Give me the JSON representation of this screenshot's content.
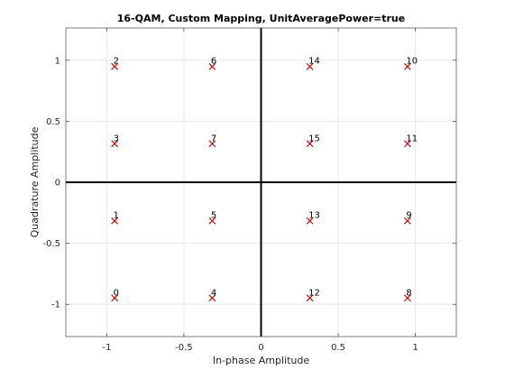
{
  "chart_data": {
    "type": "scatter",
    "title": "16-QAM, Custom Mapping, UnitAveragePower=true",
    "xlabel": "In-phase Amplitude",
    "ylabel": "Quadrature Amplitude",
    "xlim": [
      -1.2649,
      1.2649
    ],
    "ylim": [
      -1.2649,
      1.2649
    ],
    "xticks": [
      -1,
      -0.5,
      0,
      0.5,
      1
    ],
    "yticks": [
      -1,
      -0.5,
      0,
      0.5,
      1
    ],
    "xtick_labels": [
      "-1",
      "-0.5",
      "0",
      "0.5",
      "1"
    ],
    "ytick_labels": [
      "-1",
      "-0.5",
      "0",
      "0.5",
      "1"
    ],
    "grid": true,
    "marker": "x",
    "marker_color": "#CC0000",
    "axes_lines_color": "#000000",
    "points": [
      {
        "label": "0",
        "x": -0.9487,
        "y": -0.9487
      },
      {
        "label": "1",
        "x": -0.9487,
        "y": -0.3162
      },
      {
        "label": "2",
        "x": -0.9487,
        "y": 0.9487
      },
      {
        "label": "3",
        "x": -0.9487,
        "y": 0.3162
      },
      {
        "label": "4",
        "x": -0.3162,
        "y": -0.9487
      },
      {
        "label": "5",
        "x": -0.3162,
        "y": -0.3162
      },
      {
        "label": "6",
        "x": -0.3162,
        "y": 0.9487
      },
      {
        "label": "7",
        "x": -0.3162,
        "y": 0.3162
      },
      {
        "label": "8",
        "x": 0.9487,
        "y": -0.9487
      },
      {
        "label": "9",
        "x": 0.9487,
        "y": -0.3162
      },
      {
        "label": "10",
        "x": 0.9487,
        "y": 0.9487
      },
      {
        "label": "11",
        "x": 0.9487,
        "y": 0.3162
      },
      {
        "label": "12",
        "x": 0.3162,
        "y": -0.9487
      },
      {
        "label": "13",
        "x": 0.3162,
        "y": -0.3162
      },
      {
        "label": "14",
        "x": 0.3162,
        "y": 0.9487
      },
      {
        "label": "15",
        "x": 0.3162,
        "y": 0.3162
      }
    ]
  }
}
